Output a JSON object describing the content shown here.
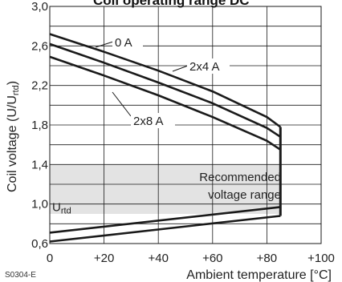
{
  "chart_data": {
    "type": "line",
    "title": "Coil operating range DC",
    "xlabel": "Ambient temperature [°C]",
    "ylabel": "Coil voltage (U/U",
    "ylabel_sub": "rtd",
    "ylabel_end": ")",
    "xlim": [
      0,
      100
    ],
    "ylim": [
      0.6,
      3.0
    ],
    "x_ticks": [
      0,
      20,
      40,
      60,
      80,
      100
    ],
    "x_tick_labels": [
      "0",
      "+20",
      "+40",
      "+60",
      "+80",
      "+100"
    ],
    "y_ticks": [
      0.6,
      1.0,
      1.4,
      1.8,
      2.2,
      2.6,
      3.0
    ],
    "y_tick_labels": [
      "0,6",
      "1,0",
      "1,4",
      "1,8",
      "2,2",
      "2,6",
      "3,0"
    ],
    "grid": true,
    "series": [
      {
        "name": "0 A",
        "x": [
          0,
          20,
          40,
          60,
          80,
          85
        ],
        "y": [
          2.72,
          2.54,
          2.35,
          2.14,
          1.88,
          1.78
        ]
      },
      {
        "name": "2x4 A",
        "x": [
          0,
          20,
          40,
          60,
          80,
          85
        ],
        "y": [
          2.62,
          2.43,
          2.23,
          2.02,
          1.77,
          1.68
        ]
      },
      {
        "name": "2x8 A",
        "x": [
          0,
          20,
          40,
          60,
          80,
          85
        ],
        "y": [
          2.49,
          2.3,
          2.1,
          1.88,
          1.64,
          1.55
        ]
      }
    ],
    "lower_limits": [
      {
        "x": [
          0,
          85
        ],
        "y": [
          0.71,
          0.97
        ]
      },
      {
        "x": [
          0,
          85
        ],
        "y": [
          0.62,
          0.88
        ]
      }
    ],
    "max_temperature": 85,
    "recommended_range": {
      "label_line1": "Recommended",
      "label_line2": "voltage range",
      "y": [
        0.9,
        1.4
      ],
      "x": [
        0,
        85
      ]
    },
    "urtd_label": "U",
    "urtd_sub": "rtd",
    "urtd_value": 1.0,
    "code": "S0304-E",
    "colors": {
      "line": "#1a1a1a",
      "grid": "#1a1a1a",
      "band": "#e3e3e3"
    }
  }
}
